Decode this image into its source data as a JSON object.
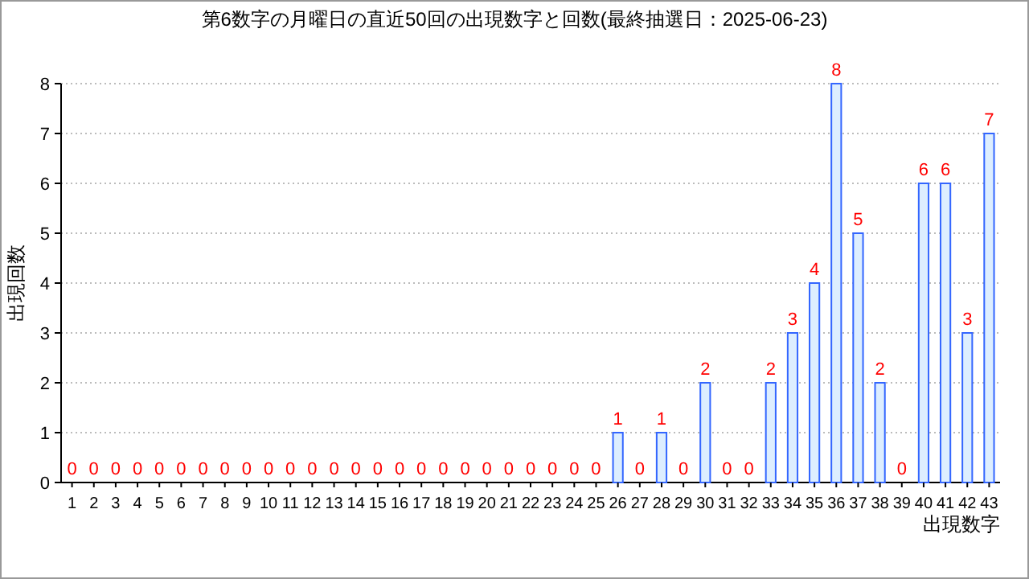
{
  "chart_data": {
    "type": "bar",
    "title": "第6数字の月曜日の直近50回の出現数字と回数(最終抽選日：2025-06-23)",
    "xlabel": "出現数字",
    "ylabel": "出現回数",
    "categories": [
      "1",
      "2",
      "3",
      "4",
      "5",
      "6",
      "7",
      "8",
      "9",
      "10",
      "11",
      "12",
      "13",
      "14",
      "15",
      "16",
      "17",
      "18",
      "19",
      "20",
      "21",
      "22",
      "23",
      "24",
      "25",
      "26",
      "27",
      "28",
      "29",
      "30",
      "31",
      "32",
      "33",
      "34",
      "35",
      "36",
      "37",
      "38",
      "39",
      "40",
      "41",
      "42",
      "43"
    ],
    "values": [
      0,
      0,
      0,
      0,
      0,
      0,
      0,
      0,
      0,
      0,
      0,
      0,
      0,
      0,
      0,
      0,
      0,
      0,
      0,
      0,
      0,
      0,
      0,
      0,
      0,
      1,
      0,
      1,
      0,
      2,
      0,
      0,
      2,
      3,
      4,
      8,
      5,
      2,
      0,
      6,
      6,
      3,
      7
    ],
    "color": "#3366ff",
    "ylim": [
      0,
      8
    ],
    "yticks": [
      0,
      1,
      2,
      3,
      4,
      5,
      6,
      7,
      8
    ],
    "grid": "y",
    "data_labels": true
  }
}
